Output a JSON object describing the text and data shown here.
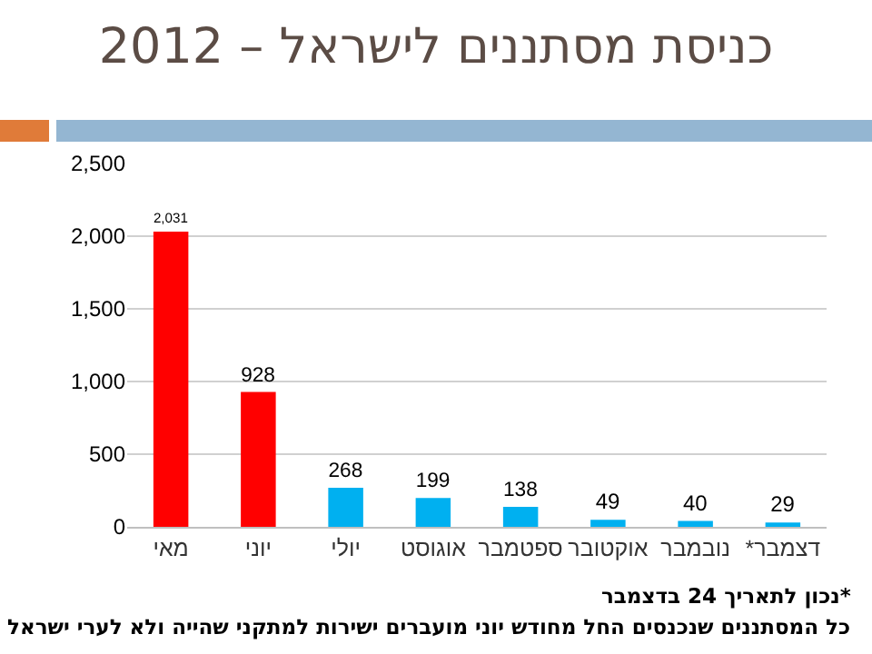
{
  "chart_data": {
    "type": "bar",
    "title": "כניסת מסתננים לישראל – 2012",
    "categories": [
      "מאי",
      "יוני",
      "יולי",
      "אוגוסט",
      "ספטמבר",
      "אוקטובר",
      "נובמבר",
      "דצמבר*"
    ],
    "values": [
      2031,
      928,
      268,
      199,
      138,
      49,
      40,
      29
    ],
    "colors": [
      "#ff0000",
      "#ff0000",
      "#00b0f0",
      "#00b0f0",
      "#00b0f0",
      "#00b0f0",
      "#00b0f0",
      "#00b0f0"
    ],
    "value_labels": [
      "2,031",
      "928",
      "268",
      "199",
      "138",
      "49",
      "40",
      "29"
    ],
    "ylim": [
      0,
      2500
    ],
    "yticks": [
      0,
      {
        "value": 500,
        "label": "500"
      },
      {
        "value": 1000,
        "label": "1,000"
      },
      {
        "value": 1500,
        "label": "1,500"
      },
      {
        "value": 2000,
        "label": "2,000"
      },
      {
        "value": 2500,
        "label": "2,500"
      }
    ],
    "grid": "y",
    "annotations": [
      "*נכון לתאריך 24 בדצמבר",
      "כל המסתננים שנכנסים החל מחודש יוני מועברים ישירות למתקני שהייה ולא לערי ישראל"
    ]
  }
}
